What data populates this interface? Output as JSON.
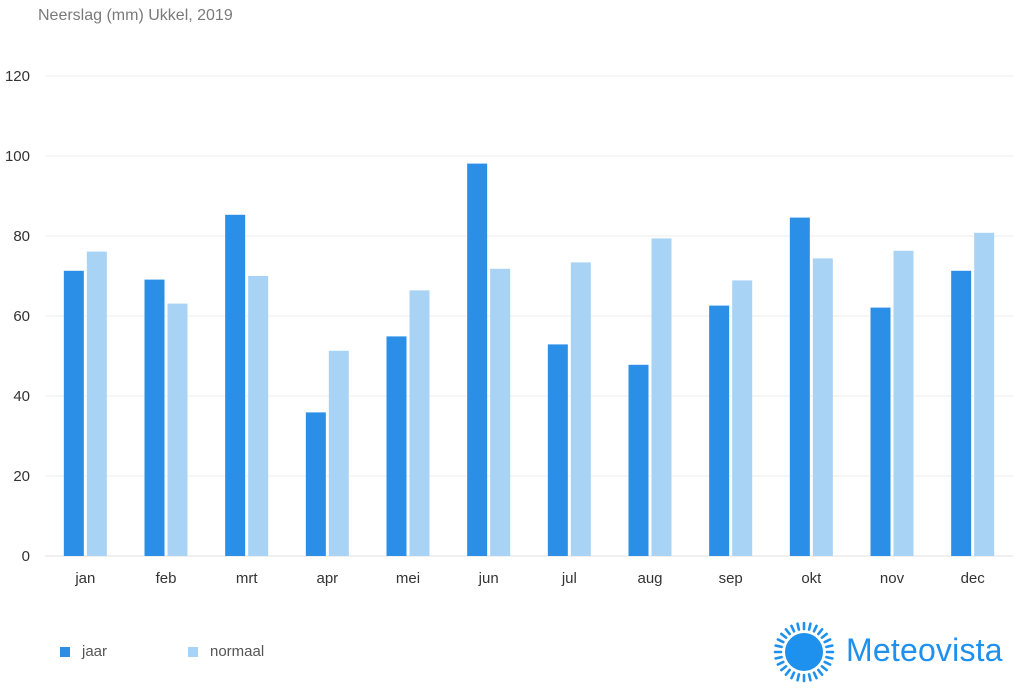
{
  "title": "Neerslag (mm) Ukkel, 2019",
  "colors": {
    "jaar": "#2b8fe8",
    "normaal": "#a9d3f5",
    "grid": "#eeeeee",
    "brand": "#1e90ee"
  },
  "chart_data": {
    "type": "bar",
    "title": "Neerslag (mm) Ukkel, 2019",
    "xlabel": "",
    "ylabel": "",
    "ylim": [
      0,
      120
    ],
    "yticks": [
      0,
      20,
      40,
      60,
      80,
      100,
      120
    ],
    "grid": true,
    "legend_position": "bottom-left",
    "categories": [
      "jan",
      "feb",
      "mrt",
      "apr",
      "mei",
      "jun",
      "jul",
      "aug",
      "sep",
      "okt",
      "nov",
      "dec"
    ],
    "series": [
      {
        "name": "jaar",
        "values": [
          71.3,
          69.1,
          85.3,
          35.9,
          54.9,
          98.1,
          52.9,
          47.8,
          62.6,
          84.6,
          62.1,
          71.3
        ]
      },
      {
        "name": "normaal",
        "values": [
          76.1,
          63.1,
          70.0,
          51.3,
          66.4,
          71.8,
          73.4,
          79.4,
          68.9,
          74.4,
          76.3,
          80.8
        ]
      }
    ]
  },
  "legend": {
    "items": [
      {
        "label": "jaar"
      },
      {
        "label": "normaal"
      }
    ]
  },
  "brand": {
    "name": "Meteovista",
    "icon": "sun-icon"
  }
}
